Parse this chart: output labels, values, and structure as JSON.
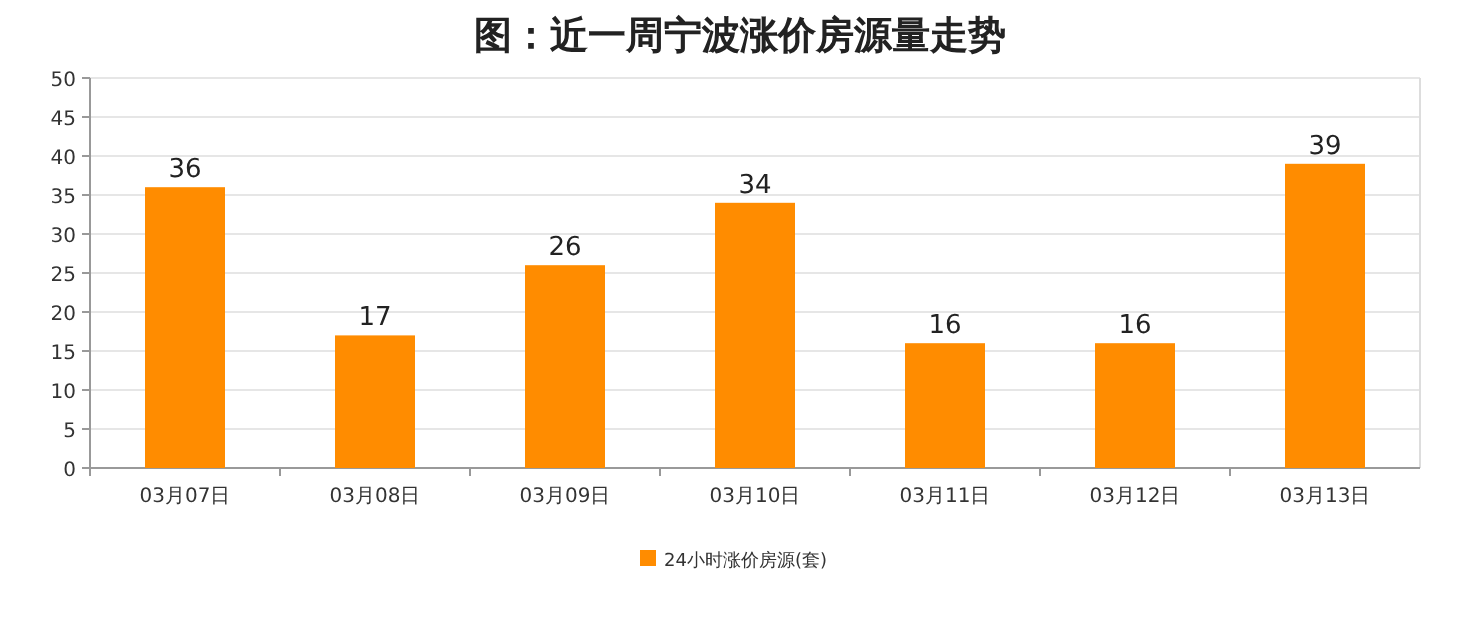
{
  "chart_data": {
    "type": "bar",
    "title": "图：近一周宁波涨价房源量走势",
    "categories": [
      "03月07日",
      "03月08日",
      "03月09日",
      "03月10日",
      "03月11日",
      "03月12日",
      "03月13日"
    ],
    "series": [
      {
        "name": "24小时涨价房源(套)",
        "color": "#ff8c00",
        "values": [
          36,
          17,
          26,
          34,
          16,
          16,
          39
        ]
      }
    ],
    "ylim": [
      0,
      50
    ],
    "yticks": [
      0,
      5,
      10,
      15,
      20,
      25,
      30,
      35,
      40,
      45,
      50
    ],
    "grid": "y",
    "legend": "bottom",
    "data_labels": true
  }
}
